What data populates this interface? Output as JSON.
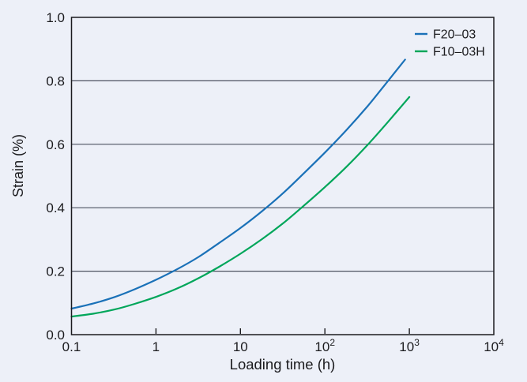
{
  "style": {
    "background": "#edf0f8",
    "axis_color": "#1b1b1f",
    "grid_color": "#4d5260",
    "text_color": "#1b1b1e"
  },
  "chart_data": {
    "type": "line",
    "title": "",
    "xlabel": "Loading time (h)",
    "ylabel": "Strain (%)",
    "x_scale": "log10",
    "xlim": [
      0.1,
      10000
    ],
    "ylim": [
      0.0,
      1.0
    ],
    "grid": "horizontal-only",
    "legend_position": "top-right-inside",
    "x_ticks": [
      {
        "value": 0.1,
        "base": "0.1",
        "sup": ""
      },
      {
        "value": 1,
        "base": "1",
        "sup": ""
      },
      {
        "value": 10,
        "base": "10",
        "sup": ""
      },
      {
        "value": 100,
        "base": "10",
        "sup": "2"
      },
      {
        "value": 1000,
        "base": "10",
        "sup": "3"
      },
      {
        "value": 10000,
        "base": "10",
        "sup": "4"
      }
    ],
    "y_ticks": [
      {
        "value": 0.0,
        "label": "0.0"
      },
      {
        "value": 0.2,
        "label": "0.2"
      },
      {
        "value": 0.4,
        "label": "0.4"
      },
      {
        "value": 0.6,
        "label": "0.6"
      },
      {
        "value": 0.8,
        "label": "0.8"
      },
      {
        "value": 1.0,
        "label": "1.0"
      }
    ],
    "series": [
      {
        "name": "F20–03",
        "color": "#1a71b8",
        "points": [
          [
            0.1,
            0.082
          ],
          [
            0.18,
            0.098
          ],
          [
            0.32,
            0.118
          ],
          [
            0.56,
            0.143
          ],
          [
            1,
            0.173
          ],
          [
            1.8,
            0.207
          ],
          [
            3.2,
            0.245
          ],
          [
            5.6,
            0.289
          ],
          [
            10,
            0.336
          ],
          [
            18,
            0.389
          ],
          [
            32,
            0.446
          ],
          [
            56,
            0.508
          ],
          [
            100,
            0.574
          ],
          [
            180,
            0.645
          ],
          [
            320,
            0.72
          ],
          [
            560,
            0.8
          ],
          [
            890,
            0.867
          ]
        ]
      },
      {
        "name": "F10–03H",
        "color": "#00a65a",
        "points": [
          [
            0.1,
            0.057
          ],
          [
            0.18,
            0.066
          ],
          [
            0.32,
            0.079
          ],
          [
            0.56,
            0.097
          ],
          [
            1,
            0.119
          ],
          [
            1.8,
            0.146
          ],
          [
            3.2,
            0.178
          ],
          [
            5.6,
            0.214
          ],
          [
            10,
            0.255
          ],
          [
            18,
            0.301
          ],
          [
            32,
            0.351
          ],
          [
            56,
            0.406
          ],
          [
            100,
            0.465
          ],
          [
            180,
            0.529
          ],
          [
            320,
            0.598
          ],
          [
            560,
            0.671
          ],
          [
            1000,
            0.749
          ]
        ]
      }
    ]
  }
}
